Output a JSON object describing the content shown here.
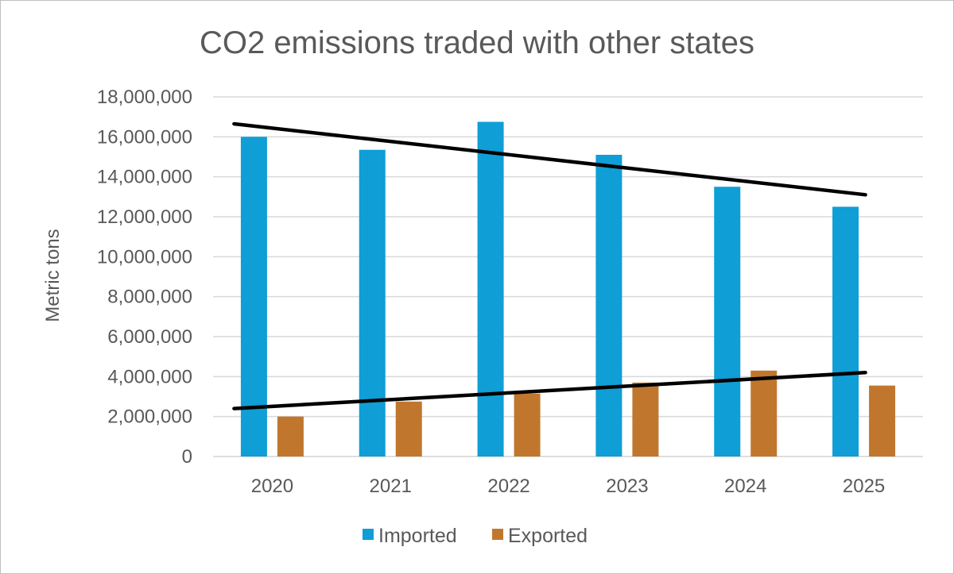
{
  "chart_data": {
    "type": "bar",
    "title": "CO2 emissions traded with other states",
    "xlabel": "",
    "ylabel": "Metric tons",
    "ylim": [
      0,
      18000000
    ],
    "yticks": [
      0,
      2000000,
      4000000,
      6000000,
      8000000,
      10000000,
      12000000,
      14000000,
      16000000,
      18000000
    ],
    "ytick_labels": [
      "0",
      "2,000,000",
      "4,000,000",
      "6,000,000",
      "8,000,000",
      "10,000,000",
      "12,000,000",
      "14,000,000",
      "16,000,000",
      "18,000,000"
    ],
    "categories": [
      "2020",
      "2021",
      "2022",
      "2023",
      "2024",
      "2025"
    ],
    "series": [
      {
        "name": "Imported",
        "color": "#0f9ed5",
        "values": [
          16000000,
          15350000,
          16750000,
          15100000,
          13500000,
          12500000
        ]
      },
      {
        "name": "Exported",
        "color": "#c0772d",
        "values": [
          2000000,
          2750000,
          3150000,
          3700000,
          4300000,
          3550000
        ]
      }
    ],
    "trendlines": [
      {
        "series": "Imported",
        "color": "#000000",
        "start": 16650000,
        "end": 13100000
      },
      {
        "series": "Exported",
        "color": "#000000",
        "start": 2400000,
        "end": 4200000
      }
    ],
    "grid": true,
    "legend": "bottom"
  }
}
